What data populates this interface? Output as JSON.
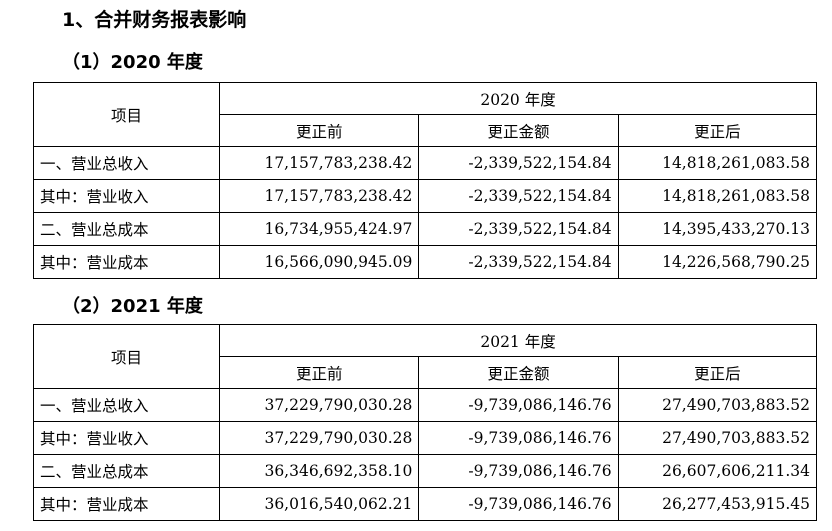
{
  "heading": "1、合并财务报表影响",
  "sections": [
    {
      "title": "（1）2020 年度",
      "item_header": "项目",
      "year_header": "2020 年度",
      "col_headers": [
        "更正前",
        "更正金额",
        "更正后"
      ],
      "rows": [
        {
          "label": "一、营业总收入",
          "before": "17,157,783,238.42",
          "adjustment": "-2,339,522,154.84",
          "after": "14,818,261,083.58"
        },
        {
          "label": "其中：营业收入",
          "before": "17,157,783,238.42",
          "adjustment": "-2,339,522,154.84",
          "after": "14,818,261,083.58"
        },
        {
          "label": "二、营业总成本",
          "before": "16,734,955,424.97",
          "adjustment": "-2,339,522,154.84",
          "after": "14,395,433,270.13"
        },
        {
          "label": "其中：营业成本",
          "before": "16,566,090,945.09",
          "adjustment": "-2,339,522,154.84",
          "after": "14,226,568,790.25"
        }
      ]
    },
    {
      "title": "（2）2021 年度",
      "item_header": "项目",
      "year_header": "2021 年度",
      "col_headers": [
        "更正前",
        "更正金额",
        "更正后"
      ],
      "rows": [
        {
          "label": "一、营业总收入",
          "before": "37,229,790,030.28",
          "adjustment": "-9,739,086,146.76",
          "after": "27,490,703,883.52"
        },
        {
          "label": "其中：营业收入",
          "before": "37,229,790,030.28",
          "adjustment": "-9,739,086,146.76",
          "after": "27,490,703,883.52"
        },
        {
          "label": "二、营业总成本",
          "before": "36,346,692,358.10",
          "adjustment": "-9,739,086,146.76",
          "after": "26,607,606,211.34"
        },
        {
          "label": "其中：营业成本",
          "before": "36,016,540,062.21",
          "adjustment": "-9,739,086,146.76",
          "after": "26,277,453,915.45"
        }
      ]
    }
  ]
}
